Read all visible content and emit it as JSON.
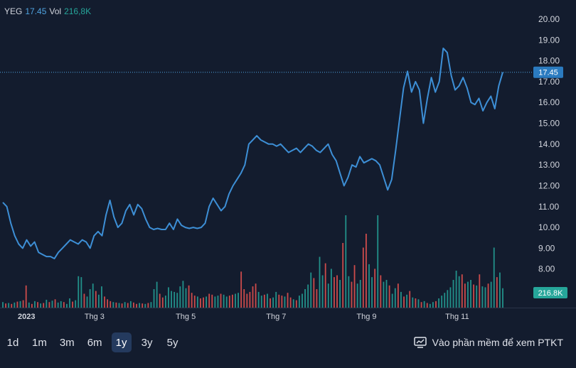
{
  "legend": {
    "symbol": "YEG",
    "price": "17.45",
    "vol_label": "Vol",
    "vol_value": "216,8K"
  },
  "price_tag": "17.45",
  "volume_tag": "216.8K",
  "colors": {
    "line": "#3d8fd6",
    "up": "#26a69a",
    "down": "#ef5350",
    "tag": "#2b7bc0"
  },
  "ranges": [
    "1d",
    "1m",
    "3m",
    "6m",
    "1y",
    "3y",
    "5y"
  ],
  "active_range": "1y",
  "ta_link": {
    "label": "Vào phần mềm để xem PTKT",
    "icon": "screen-chart-icon"
  },
  "chart_data": {
    "type": "line",
    "title": "YEG",
    "last_price": 17.45,
    "ylim": [
      7.0,
      20.0
    ],
    "y_ticks": [
      "8.00",
      "9.00",
      "10.00",
      "11.00",
      "12.00",
      "13.00",
      "14.00",
      "15.00",
      "16.00",
      "17.00",
      "18.00",
      "19.00",
      "20.00"
    ],
    "x_ticks": [
      {
        "label": "2023",
        "t": 0.0,
        "year": true
      },
      {
        "label": "Thg 3",
        "t": 0.1833
      },
      {
        "label": "Thg 5",
        "t": 0.3658
      },
      {
        "label": "Thg 7",
        "t": 0.5467
      },
      {
        "label": "Thg 9",
        "t": 0.7276
      },
      {
        "label": "Thg 11",
        "t": 0.9088
      }
    ],
    "price_series": [
      11.2,
      11.0,
      10.2,
      9.6,
      9.2,
      9.0,
      9.4,
      9.1,
      9.3,
      8.8,
      8.7,
      8.6,
      8.6,
      8.5,
      8.8,
      9.0,
      9.2,
      9.4,
      9.3,
      9.2,
      9.4,
      9.3,
      9.0,
      9.6,
      9.8,
      9.6,
      10.6,
      11.3,
      10.5,
      10.0,
      10.2,
      10.8,
      11.1,
      10.6,
      11.1,
      10.9,
      10.4,
      10.0,
      9.9,
      9.95,
      9.9,
      9.9,
      10.2,
      9.9,
      10.4,
      10.1,
      10.0,
      9.95,
      10.0,
      9.95,
      10.0,
      10.2,
      11.0,
      11.4,
      11.1,
      10.8,
      11.0,
      11.6,
      12.0,
      12.3,
      12.6,
      13.0,
      14.0,
      14.2,
      14.4,
      14.2,
      14.1,
      14.0,
      14.0,
      13.9,
      14.0,
      13.8,
      13.6,
      13.7,
      13.8,
      13.6,
      13.8,
      14.0,
      13.9,
      13.7,
      13.6,
      13.8,
      14.0,
      13.5,
      13.2,
      12.6,
      12.0,
      12.4,
      13.0,
      12.9,
      13.4,
      13.1,
      13.2,
      13.3,
      13.2,
      13.0,
      12.4,
      11.8,
      12.3,
      13.7,
      15.2,
      16.7,
      17.5,
      16.5,
      17.0,
      16.6,
      15.0,
      16.2,
      17.2,
      16.5,
      17.0,
      18.6,
      18.4,
      17.3,
      16.6,
      16.8,
      17.2,
      16.7,
      16.0,
      15.9,
      16.2,
      15.6,
      16.0,
      16.3,
      15.7,
      16.8,
      17.45
    ],
    "volume_max": 1000,
    "volume_series": [
      {
        "v": 60,
        "up": true
      },
      {
        "v": 45,
        "up": false
      },
      {
        "v": 50,
        "up": true
      },
      {
        "v": 40,
        "up": false
      },
      {
        "v": 55,
        "up": true
      },
      {
        "v": 65,
        "up": false
      },
      {
        "v": 70,
        "up": true
      },
      {
        "v": 80,
        "up": false
      },
      {
        "v": 240,
        "up": false
      },
      {
        "v": 55,
        "up": true
      },
      {
        "v": 40,
        "up": false
      },
      {
        "v": 70,
        "up": true
      },
      {
        "v": 60,
        "up": false
      },
      {
        "v": 45,
        "up": true
      },
      {
        "v": 50,
        "up": false
      },
      {
        "v": 85,
        "up": true
      },
      {
        "v": 60,
        "up": false
      },
      {
        "v": 75,
        "up": true
      },
      {
        "v": 90,
        "up": false
      },
      {
        "v": 55,
        "up": true
      },
      {
        "v": 70,
        "up": true
      },
      {
        "v": 60,
        "up": false
      },
      {
        "v": 40,
        "up": true
      },
      {
        "v": 100,
        "up": true
      },
      {
        "v": 65,
        "up": false
      },
      {
        "v": 80,
        "up": true
      },
      {
        "v": 340,
        "up": true
      },
      {
        "v": 330,
        "up": true
      },
      {
        "v": 150,
        "up": false
      },
      {
        "v": 120,
        "up": true
      },
      {
        "v": 200,
        "up": true
      },
      {
        "v": 260,
        "up": true
      },
      {
        "v": 180,
        "up": false
      },
      {
        "v": 140,
        "up": true
      },
      {
        "v": 230,
        "up": true
      },
      {
        "v": 120,
        "up": false
      },
      {
        "v": 90,
        "up": false
      },
      {
        "v": 70,
        "up": false
      },
      {
        "v": 60,
        "up": true
      },
      {
        "v": 55,
        "up": false
      },
      {
        "v": 50,
        "up": true
      },
      {
        "v": 45,
        "up": false
      },
      {
        "v": 60,
        "up": true
      },
      {
        "v": 50,
        "up": false
      },
      {
        "v": 70,
        "up": true
      },
      {
        "v": 55,
        "up": false
      },
      {
        "v": 40,
        "up": false
      },
      {
        "v": 50,
        "up": true
      },
      {
        "v": 45,
        "up": false
      },
      {
        "v": 40,
        "up": true
      },
      {
        "v": 50,
        "up": false
      },
      {
        "v": 60,
        "up": true
      },
      {
        "v": 200,
        "up": true
      },
      {
        "v": 280,
        "up": true
      },
      {
        "v": 150,
        "up": false
      },
      {
        "v": 110,
        "up": false
      },
      {
        "v": 130,
        "up": true
      },
      {
        "v": 220,
        "up": true
      },
      {
        "v": 180,
        "up": true
      },
      {
        "v": 170,
        "up": true
      },
      {
        "v": 160,
        "up": true
      },
      {
        "v": 230,
        "up": true
      },
      {
        "v": 290,
        "up": true
      },
      {
        "v": 210,
        "up": true
      },
      {
        "v": 240,
        "up": false
      },
      {
        "v": 160,
        "up": false
      },
      {
        "v": 130,
        "up": false
      },
      {
        "v": 120,
        "up": true
      },
      {
        "v": 100,
        "up": false
      },
      {
        "v": 110,
        "up": false
      },
      {
        "v": 120,
        "up": true
      },
      {
        "v": 150,
        "up": false
      },
      {
        "v": 140,
        "up": false
      },
      {
        "v": 120,
        "up": true
      },
      {
        "v": 130,
        "up": true
      },
      {
        "v": 150,
        "up": false
      },
      {
        "v": 140,
        "up": true
      },
      {
        "v": 120,
        "up": true
      },
      {
        "v": 130,
        "up": false
      },
      {
        "v": 140,
        "up": false
      },
      {
        "v": 150,
        "up": true
      },
      {
        "v": 160,
        "up": true
      },
      {
        "v": 390,
        "up": false
      },
      {
        "v": 200,
        "up": false
      },
      {
        "v": 150,
        "up": false
      },
      {
        "v": 170,
        "up": false
      },
      {
        "v": 230,
        "up": false
      },
      {
        "v": 260,
        "up": false
      },
      {
        "v": 170,
        "up": true
      },
      {
        "v": 130,
        "up": true
      },
      {
        "v": 140,
        "up": false
      },
      {
        "v": 150,
        "up": true
      },
      {
        "v": 100,
        "up": false
      },
      {
        "v": 110,
        "up": true
      },
      {
        "v": 170,
        "up": true
      },
      {
        "v": 140,
        "up": false
      },
      {
        "v": 130,
        "up": false
      },
      {
        "v": 120,
        "up": true
      },
      {
        "v": 160,
        "up": false
      },
      {
        "v": 110,
        "up": false
      },
      {
        "v": 90,
        "up": true
      },
      {
        "v": 80,
        "up": false
      },
      {
        "v": 130,
        "up": true
      },
      {
        "v": 150,
        "up": true
      },
      {
        "v": 200,
        "up": true
      },
      {
        "v": 250,
        "up": true
      },
      {
        "v": 380,
        "up": true
      },
      {
        "v": 320,
        "up": false
      },
      {
        "v": 200,
        "up": false
      },
      {
        "v": 550,
        "up": true
      },
      {
        "v": 350,
        "up": true
      },
      {
        "v": 480,
        "up": false
      },
      {
        "v": 260,
        "up": true
      },
      {
        "v": 420,
        "up": true
      },
      {
        "v": 330,
        "up": false
      },
      {
        "v": 350,
        "up": false
      },
      {
        "v": 300,
        "up": true
      },
      {
        "v": 700,
        "up": false
      },
      {
        "v": 1000,
        "up": true
      },
      {
        "v": 340,
        "up": true
      },
      {
        "v": 280,
        "up": false
      },
      {
        "v": 460,
        "up": false
      },
      {
        "v": 260,
        "up": true
      },
      {
        "v": 300,
        "up": true
      },
      {
        "v": 650,
        "up": false
      },
      {
        "v": 800,
        "up": false
      },
      {
        "v": 470,
        "up": true
      },
      {
        "v": 330,
        "up": true
      },
      {
        "v": 420,
        "up": false
      },
      {
        "v": 1000,
        "up": true
      },
      {
        "v": 350,
        "up": false
      },
      {
        "v": 280,
        "up": true
      },
      {
        "v": 300,
        "up": true
      },
      {
        "v": 240,
        "up": false
      },
      {
        "v": 150,
        "up": true
      },
      {
        "v": 210,
        "up": true
      },
      {
        "v": 260,
        "up": false
      },
      {
        "v": 170,
        "up": true
      },
      {
        "v": 120,
        "up": false
      },
      {
        "v": 140,
        "up": true
      },
      {
        "v": 180,
        "up": false
      },
      {
        "v": 110,
        "up": true
      },
      {
        "v": 100,
        "up": false
      },
      {
        "v": 90,
        "up": true
      },
      {
        "v": 60,
        "up": false
      },
      {
        "v": 70,
        "up": true
      },
      {
        "v": 50,
        "up": false
      },
      {
        "v": 40,
        "up": true
      },
      {
        "v": 60,
        "up": true
      },
      {
        "v": 70,
        "up": false
      },
      {
        "v": 100,
        "up": true
      },
      {
        "v": 130,
        "up": true
      },
      {
        "v": 160,
        "up": true
      },
      {
        "v": 190,
        "up": true
      },
      {
        "v": 220,
        "up": true
      },
      {
        "v": 300,
        "up": true
      },
      {
        "v": 400,
        "up": true
      },
      {
        "v": 340,
        "up": true
      },
      {
        "v": 360,
        "up": false
      },
      {
        "v": 260,
        "up": false
      },
      {
        "v": 280,
        "up": true
      },
      {
        "v": 300,
        "up": true
      },
      {
        "v": 250,
        "up": false
      },
      {
        "v": 240,
        "up": true
      },
      {
        "v": 360,
        "up": false
      },
      {
        "v": 230,
        "up": true
      },
      {
        "v": 220,
        "up": true
      },
      {
        "v": 260,
        "up": false
      },
      {
        "v": 280,
        "up": true
      },
      {
        "v": 650,
        "up": true
      },
      {
        "v": 330,
        "up": false
      },
      {
        "v": 380,
        "up": true
      },
      {
        "v": 210,
        "up": true
      }
    ]
  }
}
